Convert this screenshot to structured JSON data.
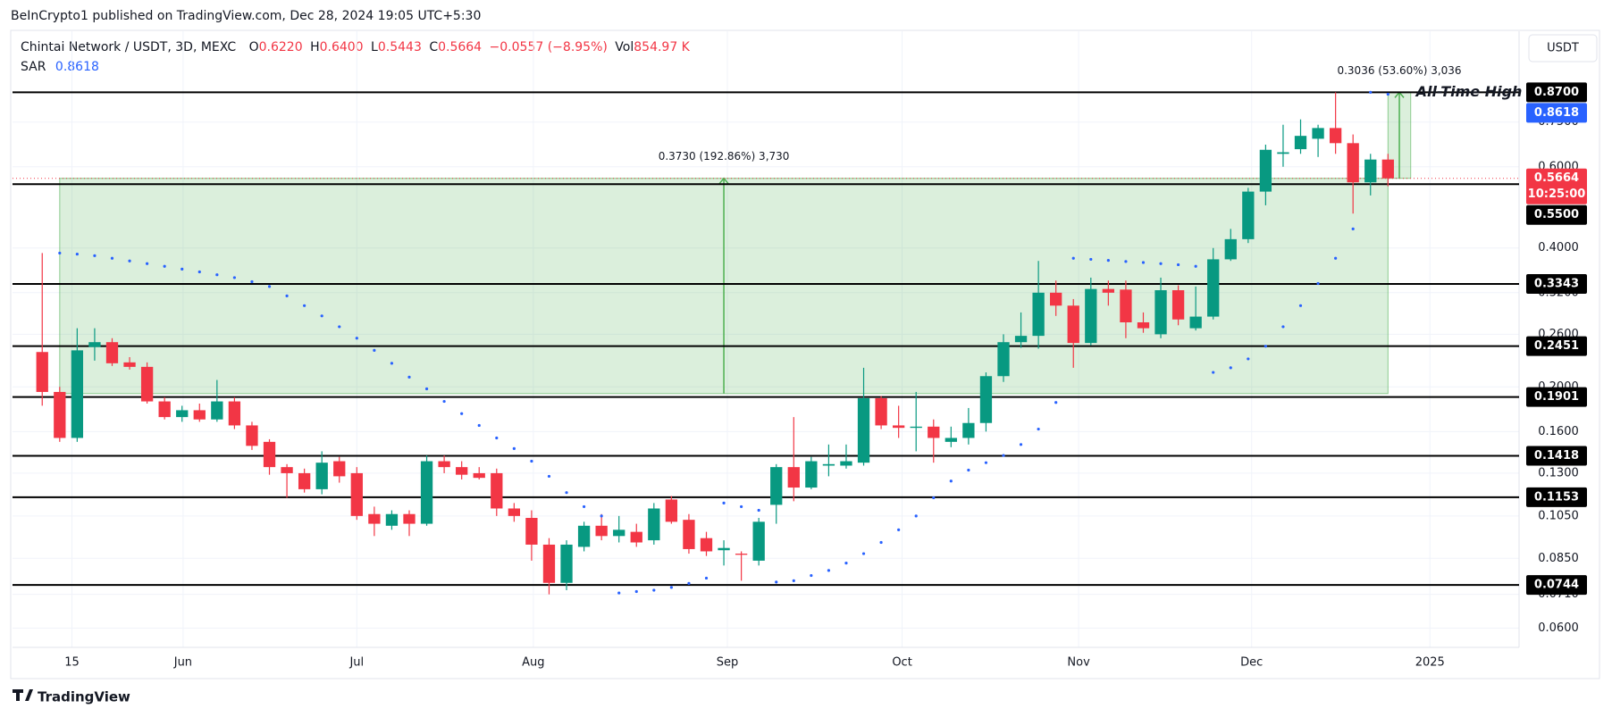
{
  "header": "BeInCrypto1 published on TradingView.com, Dec 28, 2024 19:05 UTC+5:30",
  "footer": "TradingView",
  "currency_button": "USDT",
  "chart_data": {
    "type": "candlestick",
    "title": "Chintai Network / USDT, 3D, MEXC",
    "legend": {
      "labels": [
        "O",
        "H",
        "L",
        "C"
      ],
      "value_labels": [
        "0.6220",
        "0.6400",
        "0.5443",
        "0.5664"
      ],
      "change": "−0.0557 (−8.95%)",
      "volume_label": "Vol",
      "volume": "854.97 K"
    },
    "up_color": "#089981",
    "down_color": "#f23645",
    "open": [
      0.238,
      0.195,
      0.155,
      0.244,
      0.25,
      0.226,
      0.221,
      0.186,
      0.172,
      0.178,
      0.17,
      0.186,
      0.165,
      0.152,
      0.134,
      0.13,
      0.12,
      0.138,
      0.13,
      0.106,
      0.1,
      0.106,
      0.101,
      0.138,
      0.134,
      0.13,
      0.13,
      0.109,
      0.104,
      0.091,
      0.0752,
      0.09,
      0.1,
      0.095,
      0.097,
      0.093,
      0.114,
      0.103,
      0.094,
      0.0885,
      0.087,
      0.084,
      0.111,
      0.134,
      0.121,
      0.135,
      0.135,
      0.137,
      0.189,
      0.165,
      0.163,
      0.164,
      0.152,
      0.155,
      0.167,
      0.211,
      0.25,
      0.258,
      0.32,
      0.3,
      0.249,
      0.326,
      0.325,
      0.276,
      0.26,
      0.324,
      0.268,
      0.284,
      0.378,
      0.418,
      0.53,
      0.64,
      0.655,
      0.69,
      0.728,
      0.675,
      0.555,
      0.622
    ],
    "high": [
      0.39,
      0.2,
      0.268,
      0.268,
      0.255,
      0.232,
      0.226,
      0.19,
      0.182,
      0.184,
      0.207,
      0.19,
      0.168,
      0.154,
      0.136,
      0.133,
      0.145,
      0.141,
      0.134,
      0.11,
      0.108,
      0.108,
      0.142,
      0.142,
      0.138,
      0.134,
      0.133,
      0.112,
      0.108,
      0.094,
      0.093,
      0.102,
      0.106,
      0.105,
      0.101,
      0.112,
      0.116,
      0.106,
      0.097,
      0.093,
      0.088,
      0.104,
      0.136,
      0.172,
      0.141,
      0.15,
      0.15,
      0.22,
      0.191,
      0.182,
      0.195,
      0.17,
      0.164,
      0.18,
      0.215,
      0.26,
      0.29,
      0.375,
      0.34,
      0.31,
      0.345,
      0.34,
      0.34,
      0.29,
      0.345,
      0.332,
      0.33,
      0.4,
      0.44,
      0.54,
      0.67,
      0.74,
      0.76,
      0.74,
      0.87,
      0.705,
      0.64,
      0.64
    ],
    "low": [
      0.182,
      0.152,
      0.152,
      0.228,
      0.222,
      0.218,
      0.184,
      0.17,
      0.168,
      0.168,
      0.168,
      0.162,
      0.146,
      0.129,
      0.115,
      0.118,
      0.117,
      0.124,
      0.103,
      0.095,
      0.098,
      0.095,
      0.1,
      0.13,
      0.126,
      0.126,
      0.105,
      0.102,
      0.084,
      0.071,
      0.0725,
      0.088,
      0.093,
      0.092,
      0.09,
      0.091,
      0.101,
      0.087,
      0.086,
      0.082,
      0.076,
      0.082,
      0.101,
      0.113,
      0.12,
      0.128,
      0.133,
      0.135,
      0.162,
      0.155,
      0.145,
      0.137,
      0.148,
      0.15,
      0.16,
      0.205,
      0.243,
      0.242,
      0.285,
      0.22,
      0.246,
      0.3,
      0.255,
      0.262,
      0.255,
      0.272,
      0.265,
      0.28,
      0.375,
      0.41,
      0.495,
      0.6,
      0.64,
      0.63,
      0.64,
      0.475,
      0.52,
      0.5443
    ],
    "close": [
      0.195,
      0.155,
      0.24,
      0.25,
      0.225,
      0.221,
      0.186,
      0.172,
      0.178,
      0.17,
      0.186,
      0.165,
      0.149,
      0.134,
      0.13,
      0.12,
      0.137,
      0.128,
      0.105,
      0.101,
      0.106,
      0.101,
      0.138,
      0.134,
      0.129,
      0.127,
      0.109,
      0.105,
      0.091,
      0.0752,
      0.091,
      0.1,
      0.095,
      0.098,
      0.092,
      0.109,
      0.102,
      0.089,
      0.088,
      0.0895,
      0.0865,
      0.102,
      0.134,
      0.121,
      0.138,
      0.136,
      0.138,
      0.189,
      0.165,
      0.163,
      0.164,
      0.155,
      0.155,
      0.167,
      0.211,
      0.25,
      0.258,
      0.32,
      0.3,
      0.249,
      0.326,
      0.32,
      0.276,
      0.268,
      0.324,
      0.28,
      0.284,
      0.378,
      0.418,
      0.53,
      0.653,
      0.645,
      0.7,
      0.728,
      0.675,
      0.555,
      0.622,
      0.5664
    ],
    "sar": {
      "name": "SAR",
      "color": "#2962ff",
      "last_label": "0.8618",
      "values": [
        null,
        0.39,
        0.388,
        0.385,
        0.38,
        0.375,
        0.37,
        0.365,
        0.36,
        0.355,
        0.35,
        0.345,
        0.338,
        0.33,
        0.315,
        0.3,
        0.285,
        0.27,
        0.255,
        0.24,
        0.225,
        0.21,
        0.198,
        0.186,
        0.175,
        0.165,
        0.155,
        0.147,
        0.138,
        0.128,
        0.118,
        0.11,
        0.105,
        0.0715,
        0.072,
        0.0725,
        0.0735,
        0.075,
        0.077,
        0.112,
        0.11,
        0.108,
        0.0755,
        0.076,
        0.078,
        0.08,
        0.083,
        0.087,
        0.092,
        0.098,
        0.105,
        0.115,
        0.125,
        0.132,
        0.137,
        0.142,
        0.15,
        0.162,
        0.185,
        0.38,
        0.378,
        0.376,
        0.374,
        0.372,
        0.37,
        0.368,
        0.365,
        0.215,
        0.22,
        0.23,
        0.245,
        0.27,
        0.3,
        0.335,
        0.38,
        0.44,
        0.87,
        0.8618
      ]
    },
    "last_price": {
      "value": 0.5664,
      "label": "0.5664",
      "countdown": "10:25:00"
    },
    "levels": {
      "color": "#000000",
      "values": [
        0.87,
        0.55,
        0.3343,
        0.2451,
        0.1901,
        0.1418,
        0.1153,
        0.0744
      ],
      "value_labels": [
        "0.8700",
        "0.5500",
        "0.3343",
        "0.2451",
        "0.1901",
        "0.1418",
        "0.1153",
        "0.0744"
      ]
    },
    "measures": [
      {
        "x": [
          1,
          77
        ],
        "y": [
          0.1934,
          0.5664
        ],
        "label": "0.3730 (192.86%) 3,730"
      },
      {
        "x": [
          77,
          78.3
        ],
        "y": [
          0.5664,
          0.87
        ],
        "label": "0.3036 (53.60%) 3,036"
      }
    ],
    "measure_color": "#4caf50",
    "annotation": {
      "text": "All-Time High",
      "x": 78.6,
      "y": 0.87
    },
    "xlim": [
      -1.7,
      84.5
    ],
    "xticks": [
      {
        "value": 1.7,
        "label": "15"
      },
      {
        "value": 8.06,
        "label": "Jun"
      },
      {
        "value": 18,
        "label": "Jul"
      },
      {
        "value": 28.1,
        "label": "Aug"
      },
      {
        "value": 39.2,
        "label": "Sep"
      },
      {
        "value": 49.2,
        "label": "Oct"
      },
      {
        "value": 59.3,
        "label": "Nov"
      },
      {
        "value": 69.2,
        "label": "Dec"
      },
      {
        "value": 79.4,
        "label": "2025"
      }
    ],
    "ylim": [
      0.0545,
      1.18
    ],
    "log_scale": true,
    "yticks": [
      {
        "value": 0.06,
        "label": "0.0600"
      },
      {
        "value": 0.071,
        "label": "0.0710"
      },
      {
        "value": 0.085,
        "label": "0.0850"
      },
      {
        "value": 0.105,
        "label": "0.1050"
      },
      {
        "value": 0.13,
        "label": "0.1300"
      },
      {
        "value": 0.16,
        "label": "0.1600"
      },
      {
        "value": 0.2,
        "label": "0.2000"
      },
      {
        "value": 0.26,
        "label": "0.2600"
      },
      {
        "value": 0.32,
        "label": "0.3200"
      },
      {
        "value": 0.4,
        "label": "0.4000"
      },
      {
        "value": 0.6,
        "label": "0.6000"
      },
      {
        "value": 0.75,
        "label": "0.7500"
      }
    ],
    "grid": true
  }
}
